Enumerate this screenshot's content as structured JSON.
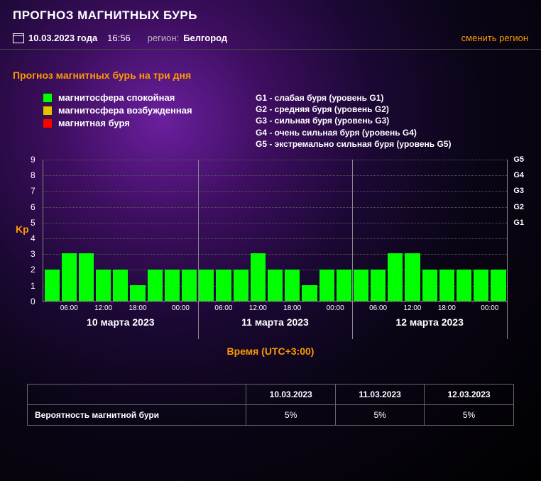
{
  "header": {
    "title": "ПРОГНОЗ МАГНИТНЫХ БУРЬ",
    "date": "10.03.2023 года",
    "time": "16:56",
    "region_label": "регион:",
    "region_value": "Белгород",
    "change_region": "сменить регион"
  },
  "subtitle": "Прогноз магнитных бурь на три дня",
  "legend": {
    "items": [
      {
        "color": "#00ff00",
        "label": "магнитосфера спокойная"
      },
      {
        "color": "#e6c200",
        "label": "магнитосфера возбужденная"
      },
      {
        "color": "#ff0000",
        "label": "магнитная буря"
      }
    ],
    "g_levels": [
      "G1 - слабая буря (уровень G1)",
      "G2 - средняя буря (уровень G2)",
      "G3 - сильная буря (уровень G3)",
      "G4 - очень сильная буря (уровень G4)",
      "G5 - экстремально сильная буря (уровень G5)"
    ]
  },
  "chart": {
    "kp_label": "Kp",
    "ymax": 9,
    "yticks": [
      0,
      1,
      2,
      3,
      4,
      5,
      6,
      7,
      8,
      9
    ],
    "y2": [
      {
        "v": 5,
        "l": "G1"
      },
      {
        "v": 6,
        "l": "G2"
      },
      {
        "v": 7,
        "l": "G3"
      },
      {
        "v": 8,
        "l": "G4"
      },
      {
        "v": 9,
        "l": "G5"
      }
    ],
    "bar_color": "#00ff00",
    "grid_color": "#555555",
    "values": [
      2,
      3,
      3,
      2,
      2,
      1,
      2,
      2,
      2,
      2,
      2,
      2,
      3,
      2,
      2,
      1,
      2,
      2,
      2,
      2,
      3,
      3,
      2,
      2,
      2,
      2,
      2
    ],
    "xticks": [
      "06:00",
      "12:00",
      "18:00",
      "00:00",
      "06:00",
      "12:00",
      "18:00",
      "00:00",
      "06:00",
      "12:00",
      "18:00",
      "00:00"
    ],
    "days": [
      "10 марта 2023",
      "11 марта 2023",
      "12 марта 2023"
    ],
    "time_axis_label": "Время (UTC+3:00)"
  },
  "table": {
    "headers": [
      "",
      "10.03.2023",
      "11.03.2023",
      "12.03.2023"
    ],
    "rows": [
      {
        "label": "Вероятность магнитной бури",
        "cells": [
          "5%",
          "5%",
          "5%"
        ]
      }
    ]
  }
}
